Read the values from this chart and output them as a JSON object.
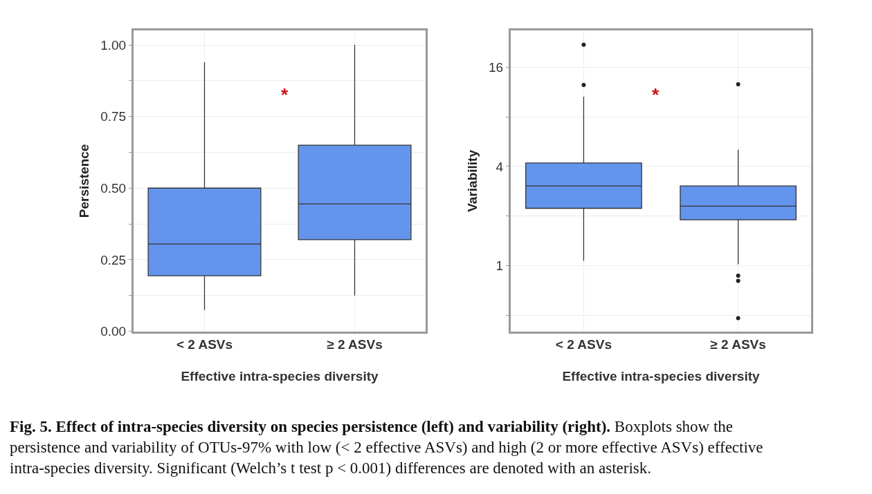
{
  "chart_data": [
    {
      "type": "box",
      "xlabel": "Effective intra-species diversity",
      "ylabel": "Persistence",
      "categories": [
        "< 2 ASVs",
        "≥ 2 ASVs"
      ],
      "series": [
        {
          "color": "#6495ed",
          "boxes": [
            {
              "low": 0.074,
              "q1": 0.194,
              "median": 0.305,
              "q3": 0.5,
              "high": 0.94
            },
            {
              "low": 0.125,
              "q1": 0.32,
              "median": 0.445,
              "q3": 0.65,
              "high": 1.0
            }
          ]
        }
      ],
      "ylim": [
        0,
        1.05
      ],
      "yticks": [
        {
          "value": 0,
          "label": "0.00"
        },
        {
          "value": 0.125,
          "label": null
        },
        0.25,
        {
          "value": 0.375,
          "label": null
        },
        {
          "value": 0.5,
          "label": "0.50"
        },
        {
          "value": 0.625,
          "label": null
        },
        0.75,
        {
          "value": 0.875,
          "label": null
        },
        {
          "value": 1,
          "label": "1.00"
        }
      ],
      "grid": true,
      "annotations": [
        "*"
      ]
    },
    {
      "type": "box",
      "xlabel": "Effective intra-species diversity",
      "ylabel": "Variability",
      "categories": [
        "< 2 ASVs",
        "≥ 2 ASVs"
      ],
      "series": [
        {
          "color": "#6495ed",
          "boxes": [
            {
              "low": 1.07,
              "q1": 2.23,
              "median": 3.05,
              "q3": 4.2,
              "high": 10.6,
              "outliers": [
                12.5,
                21.9
              ]
            },
            {
              "low": 1.02,
              "q1": 1.9,
              "median": 2.3,
              "q3": 3.05,
              "high": 5.05,
              "outliers": [
                12.6,
                0.87,
                0.81,
                0.48
              ]
            }
          ]
        }
      ],
      "log": "y",
      "ylim": [
        0.4,
        26.7
      ],
      "yticks": [
        {
          "value": 0.5,
          "label": null
        },
        1,
        {
          "value": 2,
          "label": null
        },
        4,
        {
          "value": 8,
          "label": null
        },
        16
      ],
      "grid": true,
      "annotations": [
        "*",
        "Fig. 5. Effect of intra-species diversity on species persistence (left) and variability (right).",
        "Boxplots show the persistence and variability of OTUs-97% with low (< 2 effective ASVs) and high (2 or more effective ASVs) effective intra-species diversity. Significant (Welch’s t test p < 0.001) differences are denoted with an asterisk."
      ]
    }
  ]
}
